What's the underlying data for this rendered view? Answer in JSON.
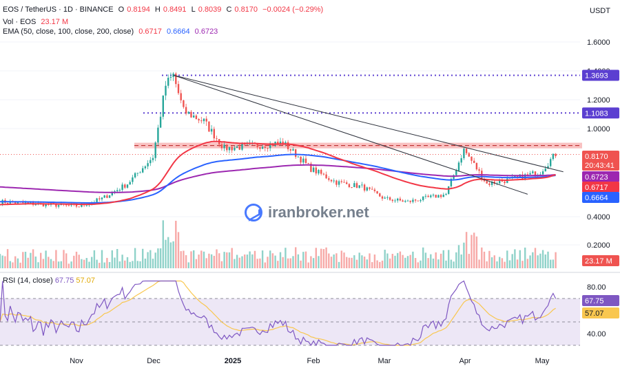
{
  "header": {
    "symbol": "EOS / TetherUS · 1D · BINANCE",
    "o_label": "O",
    "o": "0.8194",
    "h_label": "H",
    "h": "0.8491",
    "l_label": "L",
    "l": "0.8039",
    "c_label": "C",
    "c": "0.8170",
    "change": "−0.0024 (−0.29%)",
    "vol_label": "Vol · EOS",
    "vol_value": "23.17 M",
    "ema_label": "EMA (50, close, 100, close, 200, close)",
    "ema50": "0.6717",
    "ema100": "0.6664",
    "ema200": "0.6723",
    "rsi_label": "RSI (14, close)",
    "rsi_value": "67.75",
    "rsi_ma": "57.07",
    "unit": "USDT"
  },
  "watermark": "iranbroker.net",
  "colors": {
    "up": "#26a69a",
    "down": "#ef5350",
    "vol_up": "#8fd2c9",
    "vol_down": "#f7a9a7",
    "ema50": "#f23645",
    "ema100": "#2962ff",
    "ema200": "#9c27b0",
    "rsi": "#7e57c2",
    "rsi_ma": "#f9c74f",
    "level": "#5b3fd1",
    "resistance": "#f7a6a6"
  },
  "chart_data": [
    {
      "type": "candlestick",
      "x_ticks": [
        "Nov",
        "Dec",
        "2025",
        "Feb",
        "Mar",
        "Apr",
        "May"
      ],
      "y_ticks": [
        "1.6000",
        "1.4000",
        "1.2000",
        "1.0000",
        "0.4000",
        "0.2000"
      ],
      "ylim": [
        0.16,
        1.68
      ],
      "price_labels": [
        {
          "name": "level-high",
          "value": "1.3693",
          "y": 1.3693
        },
        {
          "name": "level-mid",
          "value": "1.1083",
          "y": 1.1083
        },
        {
          "name": "last-price",
          "value": "0.8170",
          "y": 0.817
        },
        {
          "name": "countdown",
          "value": "20:43:41"
        },
        {
          "name": "ema200",
          "value": "0.6723",
          "y": 0.6723
        },
        {
          "name": "ema50",
          "value": "0.6717",
          "y": 0.6717
        },
        {
          "name": "ema100",
          "value": "0.6664",
          "y": 0.6664
        },
        {
          "name": "volume",
          "value": "23.17 M"
        }
      ],
      "resistance_zone": [
        0.86,
        0.9
      ],
      "trendlines": [
        {
          "from": [
            "Dec 8",
            1.37
          ],
          "to": [
            "May 10",
            0.7
          ]
        },
        {
          "from": [
            "Dec 8",
            1.37
          ],
          "to": [
            "Apr 26",
            0.55
          ]
        }
      ],
      "close_path": [
        {
          "x": "Oct 1",
          "y": 0.5
        },
        {
          "x": "Oct 20",
          "y": 0.48
        },
        {
          "x": "Nov 1",
          "y": 0.47
        },
        {
          "x": "Nov 10",
          "y": 0.52
        },
        {
          "x": "Nov 20",
          "y": 0.62
        },
        {
          "x": "Nov 30",
          "y": 0.8
        },
        {
          "x": "Dec 5",
          "y": 1.3
        },
        {
          "x": "Dec 8",
          "y": 1.37
        },
        {
          "x": "Dec 12",
          "y": 1.12
        },
        {
          "x": "Dec 20",
          "y": 1.05
        },
        {
          "x": "Dec 28",
          "y": 0.86
        },
        {
          "x": "Jan 10",
          "y": 0.88
        },
        {
          "x": "Jan 20",
          "y": 0.9
        },
        {
          "x": "Jan 31",
          "y": 0.72
        },
        {
          "x": "Feb 10",
          "y": 0.63
        },
        {
          "x": "Feb 20",
          "y": 0.6
        },
        {
          "x": "Mar 1",
          "y": 0.52
        },
        {
          "x": "Mar 10",
          "y": 0.5
        },
        {
          "x": "Mar 25",
          "y": 0.55
        },
        {
          "x": "Apr 1",
          "y": 0.85
        },
        {
          "x": "Apr 10",
          "y": 0.62
        },
        {
          "x": "Apr 20",
          "y": 0.65
        },
        {
          "x": "May 1",
          "y": 0.7
        },
        {
          "x": "May 7",
          "y": 0.82
        }
      ]
    },
    {
      "type": "line",
      "title": "RSI (14, close)",
      "ylim": [
        30,
        85
      ],
      "y_ticks": [
        "80.00",
        "40.00"
      ],
      "band": [
        30,
        70
      ],
      "current": {
        "rsi": 67.75,
        "ma": 57.07
      }
    }
  ]
}
